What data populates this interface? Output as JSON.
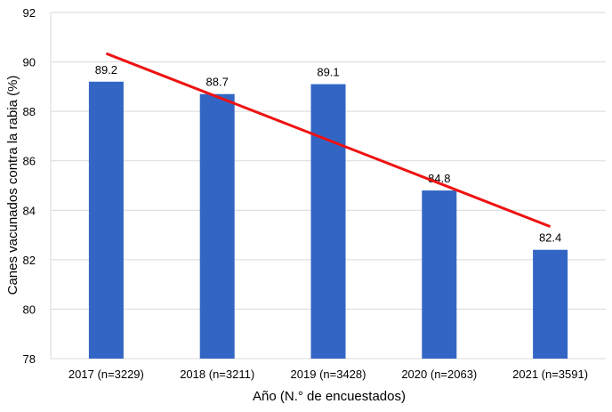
{
  "chart_data": {
    "type": "bar",
    "categories": [
      "2017 (n=3229)",
      "2018 (n=3211)",
      "2019 (n=3428)",
      "2020 (n=2063)",
      "2021 (n=3591)"
    ],
    "values": [
      89.2,
      88.7,
      89.1,
      84.8,
      82.4
    ],
    "data_labels": [
      "89.2",
      "88.7",
      "89.1",
      "84.8",
      "82.4"
    ],
    "xlabel": "Año (N.° de encuestados)",
    "ylabel": "Canes vacunados contra la rabia (%)",
    "ylim": [
      78,
      92
    ],
    "yticks": [
      78,
      80,
      82,
      84,
      86,
      88,
      90,
      92
    ],
    "grid": "horizontal",
    "bar_color": "#3366c4",
    "trendline": {
      "type": "linear",
      "color": "#ee1111",
      "start_value": 90.34,
      "end_value": 83.34
    }
  }
}
